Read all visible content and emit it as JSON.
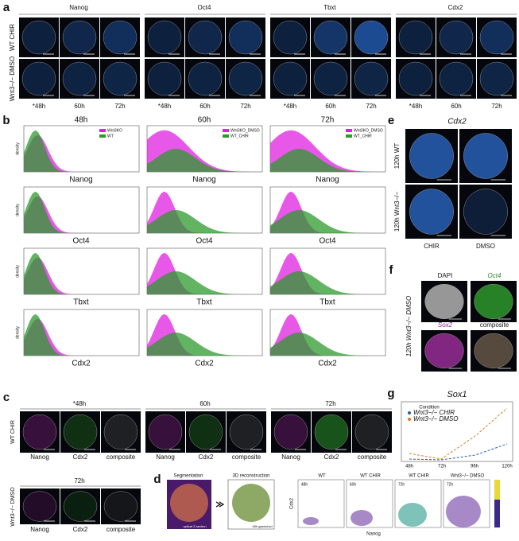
{
  "panel_a": {
    "letter": "a",
    "genes": [
      "Nanog",
      "Oct4",
      "Tbxt",
      "Cdx2"
    ],
    "rows": [
      "WT CHIR",
      "Wnt3−/− DMSO"
    ],
    "times": [
      "*48h",
      "60h",
      "72h"
    ]
  },
  "panel_b": {
    "letter": "b",
    "columns": [
      "48h",
      "60h",
      "72h"
    ],
    "genes": [
      "Nanog",
      "Oct4",
      "Tbxt",
      "Cdx2"
    ],
    "legends": [
      [
        "Wnt3KO",
        "WT"
      ],
      [
        "Wnt3KO_DMSO",
        "WT_CHIR"
      ],
      [
        "Wnt3KO_DMSO",
        "WT_CHIR"
      ]
    ],
    "ylabel": "density"
  },
  "panel_c": {
    "letter": "c",
    "times": [
      "*48h",
      "60h",
      "72h"
    ],
    "channels": [
      "Nanog",
      "Cdx2",
      "composite"
    ],
    "rows": [
      "WT CHIR",
      "Wnt3−/− DMSO"
    ]
  },
  "panel_d": {
    "letter": "d",
    "segmentation": "Segmentation",
    "reconstruction": "3D reconstruction",
    "section": "optical Z-section",
    "gastruloid": "48h gastruloid",
    "plots": [
      "WT",
      "WT CHIR",
      "WT CHIR",
      "Wnt3−/− DMSO"
    ],
    "plot_times": [
      "48h",
      "60h",
      "72h",
      "72h"
    ],
    "xlabel": "Nanog",
    "ylabel": "Cdx2"
  },
  "panel_e": {
    "letter": "e",
    "title": "Cdx2",
    "rows": [
      "120h WT",
      "120h Wnt3−/−"
    ],
    "columns": [
      "CHIR",
      "DMSO"
    ]
  },
  "panel_f": {
    "letter": "f",
    "labels": [
      "DAPI",
      "Oct4",
      "Sox2",
      "composite"
    ],
    "row": "120h Wnt3−/− DMSO"
  },
  "panel_g": {
    "letter": "g",
    "title": "Sox1",
    "legend_title": "Condition",
    "series": [
      "Wnt3−/− CHIR",
      "Wnt3−/− DMSO"
    ],
    "times": [
      "48h",
      "72h",
      "96h",
      "120h"
    ]
  }
}
